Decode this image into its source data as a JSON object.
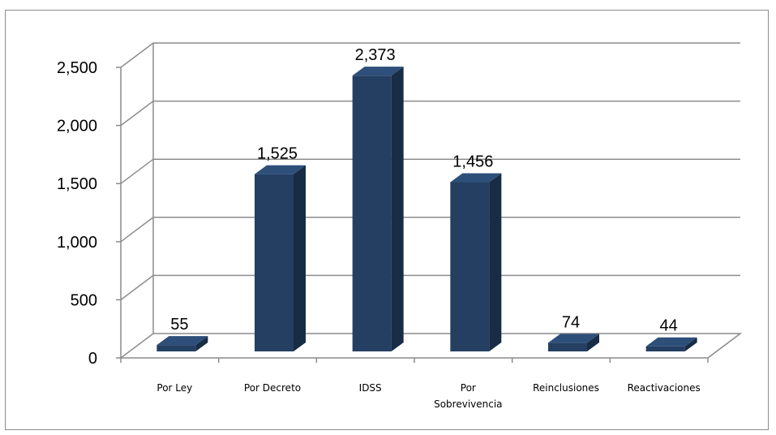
{
  "chart_data": {
    "type": "bar",
    "categories": [
      "Por Ley",
      "Por Decreto",
      "IDSS",
      "Por Sobrevivencia",
      "Reinclusiones",
      "Reactivaciones"
    ],
    "category_lines": [
      [
        "Por Ley"
      ],
      [
        "Por Decreto"
      ],
      [
        "IDSS"
      ],
      [
        "Por",
        "Sobrevivencia"
      ],
      [
        "Reinclusiones"
      ],
      [
        "Reactivaciones"
      ]
    ],
    "values": [
      55,
      1525,
      2373,
      1456,
      74,
      44
    ],
    "data_labels": [
      "55",
      "1,525",
      "2,373",
      "1,456",
      "74",
      "44"
    ],
    "y_ticks": [
      0,
      500,
      1000,
      1500,
      2000,
      2500
    ],
    "y_tick_labels": [
      "0",
      "500",
      "1,000",
      "1,500",
      "2,000",
      "2,500"
    ],
    "ylim": [
      0,
      2500
    ],
    "grid": true,
    "style": "3d-column",
    "colors": {
      "bar_front": "#243f62",
      "bar_side": "#182c45",
      "bar_top": "#2e4f7a",
      "grid": "#8c8c8c",
      "frame": "#8c8c8c"
    }
  }
}
